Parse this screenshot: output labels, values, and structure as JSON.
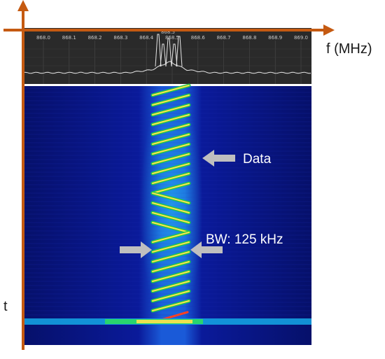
{
  "spectrum": {
    "ticks": [
      "868.0",
      "868.1",
      "868.2",
      "868.3",
      "868.4",
      "868.5",
      "868.6",
      "868.7",
      "868.8",
      "868.9",
      "869.0"
    ],
    "center_marker": "868.5"
  },
  "axes": {
    "x_label": "f (MHz)",
    "y_label": "t"
  },
  "annotations": {
    "data_label": "Data",
    "bw_label": "BW: 125 kHz"
  },
  "colors": {
    "axis": "#c55a11",
    "spectrum_bg": "#2a2a2a",
    "waterfall_bg": "#0a0f7a",
    "arrow": "#bfbfbf",
    "chirp_core": "#ffe34d",
    "chirp_edge": "#2ee05a"
  }
}
